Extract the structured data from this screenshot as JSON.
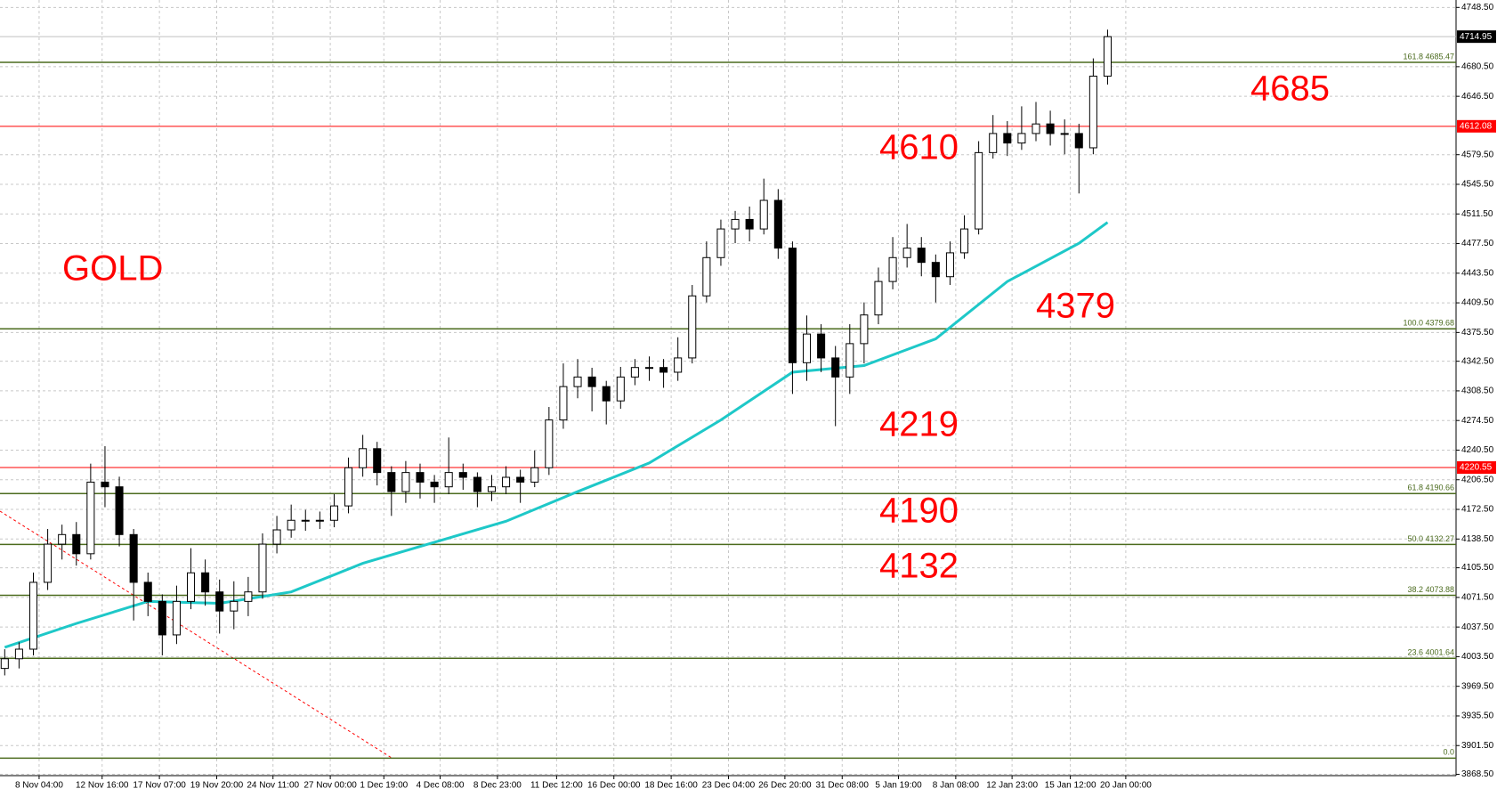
{
  "chart_data": {
    "type": "candlestick",
    "open": [
      3990.0,
      4001.1,
      4012.1,
      4088.8,
      4132.6,
      4143.6,
      4121.6,
      4203.8,
      4198.4,
      4143.6,
      4088.8,
      4066.9,
      4028.5,
      4066.9,
      4099.7,
      4077.8,
      4055.9,
      4066.9,
      4077.8,
      4132.6,
      4149.0,
      4160.0,
      4160.0,
      4160.0,
      4176.5,
      4220.3,
      4242.2,
      4214.8,
      4192.9,
      4214.8,
      4203.8,
      4198.4,
      4214.8,
      4209.3,
      4192.9,
      4198.4,
      4209.3,
      4203.8,
      4220.3,
      4275.1,
      4313.4,
      4324.4,
      4313.4,
      4297.0,
      4324.4,
      4335.3,
      4335.3,
      4329.9,
      4346.3,
      4417.5,
      4461.4,
      4494.3,
      4505.2,
      4494.3,
      4527.1,
      4472.3,
      4340.8,
      4373.7,
      4346.3,
      4324.4,
      4362.7,
      4395.6,
      4434.0,
      4461.4,
      4472.3,
      4455.9,
      4439.5,
      4466.9,
      4494.3,
      4581.9,
      4603.8,
      4592.9,
      4603.8,
      4614.8,
      4603.8,
      4603.8,
      4587.4,
      4669.6
    ],
    "high": [
      4012,
      4020,
      4100,
      4150,
      4155,
      4158,
      4225,
      4245,
      4210,
      4150,
      4100,
      4075,
      4085,
      4128,
      4115,
      4092,
      4090,
      4095,
      4145,
      4165,
      4178,
      4172,
      4170,
      4190,
      4232,
      4258,
      4250,
      4222,
      4228,
      4225,
      4212,
      4255,
      4225,
      4215,
      4212,
      4222,
      4218,
      4240,
      4290,
      4340,
      4345,
      4335,
      4320,
      4336,
      4345,
      4348,
      4345,
      4370,
      4430,
      4480,
      4505,
      4515,
      4520,
      4552,
      4540,
      4480,
      4395,
      4385,
      4360,
      4385,
      4410,
      4450,
      4485,
      4500,
      4485,
      4465,
      4480,
      4510,
      4595,
      4625,
      4618,
      4635,
      4640,
      4630,
      4620,
      4615,
      4690,
      4723
    ],
    "low": [
      3982,
      3990,
      4005,
      4080,
      4115,
      4108,
      4115,
      4175,
      4130,
      4045,
      4050,
      4005,
      4018,
      4058,
      4062,
      4030,
      4035,
      4050,
      4070,
      4122,
      4140,
      4148,
      4150,
      4152,
      4168,
      4210,
      4200,
      4165,
      4180,
      4185,
      4180,
      4190,
      4195,
      4175,
      4182,
      4190,
      4180,
      4198,
      4212,
      4265,
      4300,
      4285,
      4270,
      4288,
      4315,
      4320,
      4312,
      4320,
      4340,
      4410,
      4452,
      4478,
      4480,
      4488,
      4460,
      4305,
      4320,
      4330,
      4268,
      4305,
      4340,
      4385,
      4425,
      4450,
      4440,
      4410,
      4430,
      4460,
      4488,
      4575,
      4578,
      4585,
      4595,
      4590,
      4580,
      4535,
      4580,
      4660
    ],
    "close": [
      4001.1,
      4012.1,
      4088.8,
      4132.6,
      4143.6,
      4121.6,
      4203.8,
      4198.4,
      4143.6,
      4088.8,
      4066.9,
      4028.5,
      4066.9,
      4099.7,
      4077.8,
      4055.9,
      4066.9,
      4077.8,
      4132.6,
      4149.0,
      4160.0,
      4160.0,
      4160.0,
      4176.5,
      4220.3,
      4242.2,
      4214.8,
      4192.9,
      4214.8,
      4203.8,
      4198.4,
      4214.8,
      4209.3,
      4192.9,
      4198.4,
      4209.3,
      4203.8,
      4220.3,
      4275.1,
      4313.4,
      4324.4,
      4313.4,
      4297.0,
      4324.4,
      4335.3,
      4335.3,
      4329.9,
      4346.3,
      4417.5,
      4461.4,
      4494.3,
      4505.2,
      4494.3,
      4527.1,
      4472.3,
      4340.8,
      4373.7,
      4346.3,
      4324.4,
      4362.7,
      4395.6,
      4434.0,
      4461.4,
      4472.3,
      4455.9,
      4439.5,
      4466.9,
      4494.3,
      4581.9,
      4603.8,
      4592.9,
      4603.8,
      4614.8,
      4603.8,
      4603.8,
      4587.4,
      4669.6,
      4714.95
    ],
    "up_color": "#ffffff",
    "down_color": "#000000",
    "overlay": {
      "color": "#1ec8c8",
      "x": [
        0,
        5,
        10,
        15,
        20,
        25,
        30,
        35,
        40,
        45,
        50,
        55,
        60,
        65,
        70,
        75,
        77
      ],
      "values": [
        4014.2,
        4041.6,
        4066.9,
        4064.7,
        4077.8,
        4110.6,
        4134.8,
        4158.9,
        4192.9,
        4225.8,
        4275.1,
        4329.9,
        4337.5,
        4368.2,
        4434.0,
        4477.8,
        4501.9
      ]
    },
    "fib_color": "#4b6b1e",
    "fib_levels": [
      {
        "value": 4685.47,
        "label": "161.8 4685.47"
      },
      {
        "value": 4379.68,
        "label": "100.0 4379.68"
      },
      {
        "value": 4190.66,
        "label": "61.8 4190.66"
      },
      {
        "value": 4132.27,
        "label": "50.0 4132.27"
      },
      {
        "value": 4073.88,
        "label": "38.2 4073.88"
      },
      {
        "value": 4001.64,
        "label": "23.6 4001.64"
      },
      {
        "value": 3887.1,
        "label": "0.0"
      }
    ],
    "price_lines": {
      "color": "#ff0000",
      "values": [
        4612.08,
        4220.55
      ]
    },
    "last_price": 4714.95,
    "annotations": [
      "GOLD",
      "4685",
      "4610",
      "4379",
      "4219",
      "4190",
      "4132"
    ],
    "ylim": [
      3867,
      4757
    ],
    "yticks": [
      {
        "value": 4748.5,
        "label": "4748.50"
      },
      {
        "value": 4680.5,
        "label": "4680.50"
      },
      {
        "value": 4646.5,
        "label": "4646.50"
      },
      {
        "value": 4579.5,
        "label": "4579.50"
      },
      {
        "value": 4545.5,
        "label": "4545.50"
      },
      {
        "value": 4511.5,
        "label": "4511.50"
      },
      {
        "value": 4477.5,
        "label": "4477.50"
      },
      {
        "value": 4443.5,
        "label": "4443.50"
      },
      {
        "value": 4409.5,
        "label": "4409.50"
      },
      {
        "value": 4375.5,
        "label": "4375.50"
      },
      {
        "value": 4342.5,
        "label": "4342.50"
      },
      {
        "value": 4308.5,
        "label": "4308.50"
      },
      {
        "value": 4274.5,
        "label": "4274.50"
      },
      {
        "value": 4240.5,
        "label": "4240.50"
      },
      {
        "value": 4206.5,
        "label": "4206.50"
      },
      {
        "value": 4172.5,
        "label": "4172.50"
      },
      {
        "value": 4138.5,
        "label": "4138.50"
      },
      {
        "value": 4105.5,
        "label": "4105.50"
      },
      {
        "value": 4071.5,
        "label": "4071.50"
      },
      {
        "value": 4037.5,
        "label": "4037.50"
      },
      {
        "value": 4003.5,
        "label": "4003.50"
      },
      {
        "value": 3969.5,
        "label": "3969.50"
      },
      {
        "value": 3935.5,
        "label": "3935.50"
      },
      {
        "value": 3901.5,
        "label": "3901.50"
      },
      {
        "value": 3868.5,
        "label": "3868.50"
      }
    ],
    "xlim": [
      -0.33,
      101.33
    ],
    "xticks": [
      {
        "value": 2.4,
        "label": "8 Nov 04:00"
      },
      {
        "value": 6.8,
        "label": "12 Nov 16:00"
      },
      {
        "value": 10.8,
        "label": "17 Nov 07:00"
      },
      {
        "value": 14.8,
        "label": "19 Nov 20:00"
      },
      {
        "value": 18.73,
        "label": "24 Nov 11:00"
      },
      {
        "value": 22.73,
        "label": "27 Nov 00:00"
      },
      {
        "value": 26.47,
        "label": "1 Dec 19:00"
      },
      {
        "value": 30.4,
        "label": "4 Dec 08:00"
      },
      {
        "value": 34.4,
        "label": "8 Dec 23:00"
      },
      {
        "value": 38.53,
        "label": "11 Dec 12:00"
      },
      {
        "value": 42.53,
        "label": "16 Dec 00:00"
      },
      {
        "value": 46.53,
        "label": "18 Dec 16:00"
      },
      {
        "value": 50.53,
        "label": "23 Dec 04:00"
      },
      {
        "value": 54.47,
        "label": "26 Dec 20:00"
      },
      {
        "value": 58.47,
        "label": "31 Dec 08:00"
      },
      {
        "value": 62.4,
        "label": "5 Jan 19:00"
      },
      {
        "value": 66.4,
        "label": "8 Jan 08:00"
      },
      {
        "value": 70.33,
        "label": "12 Jan 23:00"
      },
      {
        "value": 74.4,
        "label": "15 Jan 12:00"
      },
      {
        "value": 78.27,
        "label": "20 Jan 00:00"
      }
    ],
    "grid": true
  }
}
